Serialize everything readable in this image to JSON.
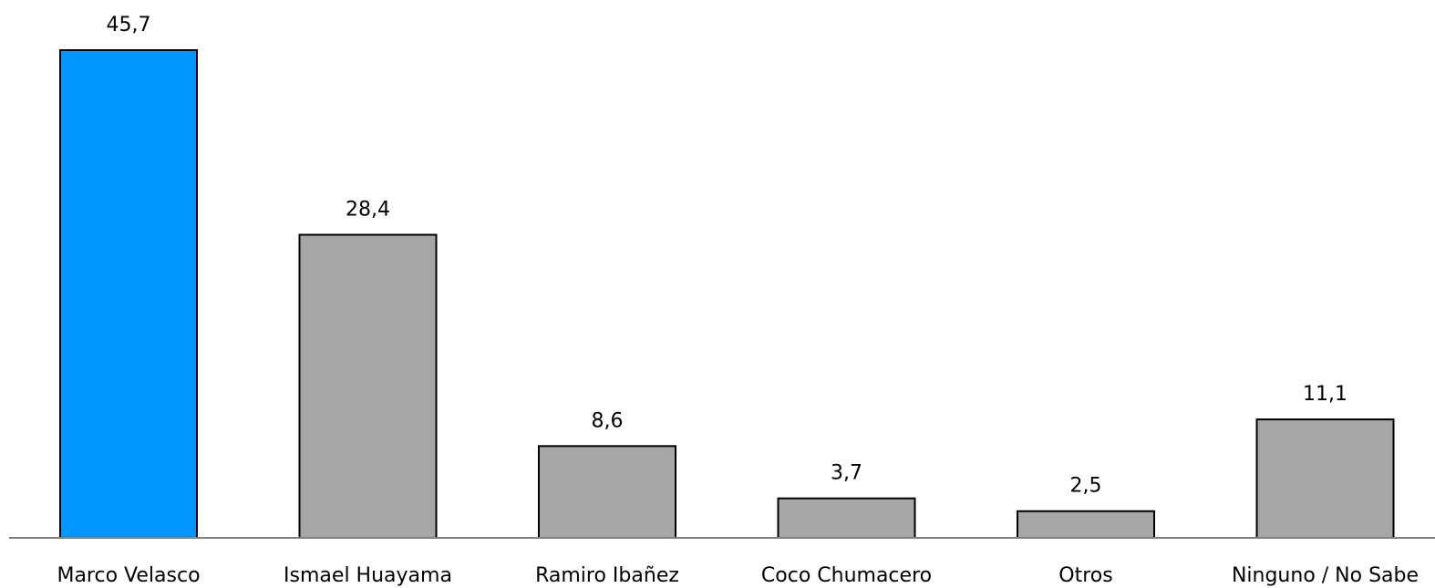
{
  "chart_data": {
    "type": "bar",
    "categories": [
      "Marco Velasco",
      "Ismael Huayama",
      "Ramiro Ibañez",
      "Coco Chumacero",
      "Otros",
      "Ninguno / No Sabe"
    ],
    "values": [
      45.7,
      28.4,
      8.6,
      3.7,
      2.5,
      11.1
    ],
    "value_labels": [
      "45,7",
      "28,4",
      "8,6",
      "3,7",
      "2,5",
      "11,1"
    ],
    "bar_colors": [
      "#0096FF",
      "#A6A6A6",
      "#A6A6A6",
      "#A6A6A6",
      "#A6A6A6",
      "#A6A6A6"
    ],
    "bar_border_color": "#000000",
    "baseline_color": "#808080",
    "title": "",
    "xlabel": "",
    "ylabel": "",
    "ylim": [
      0,
      45.7
    ],
    "grid": false,
    "legend": "none"
  }
}
